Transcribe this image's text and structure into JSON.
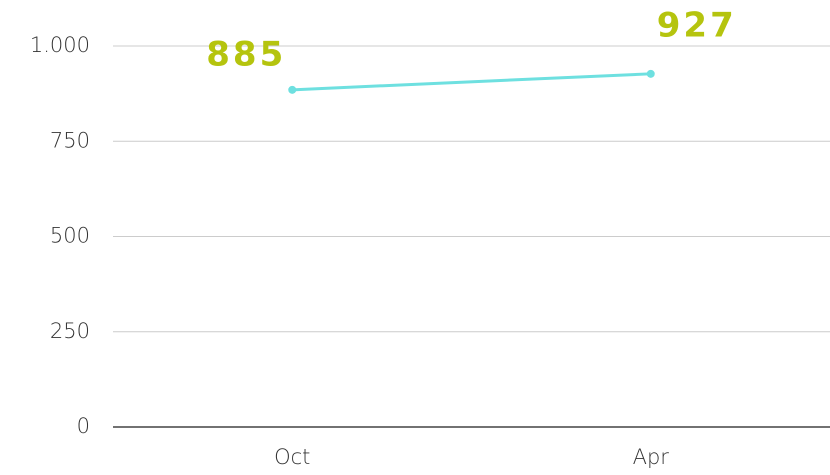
{
  "chart_data": {
    "type": "line",
    "categories": [
      "Oct",
      "Apr"
    ],
    "series": [
      {
        "name": "Series",
        "color": "#6ee0e0",
        "values": [
          885,
          927
        ]
      }
    ],
    "label_color": "#b5c40e",
    "ylim": [
      0,
      1000
    ],
    "yticks": [
      0,
      250,
      500,
      750,
      {
        "value": 1000,
        "label": "1.000"
      }
    ],
    "grid": true
  }
}
